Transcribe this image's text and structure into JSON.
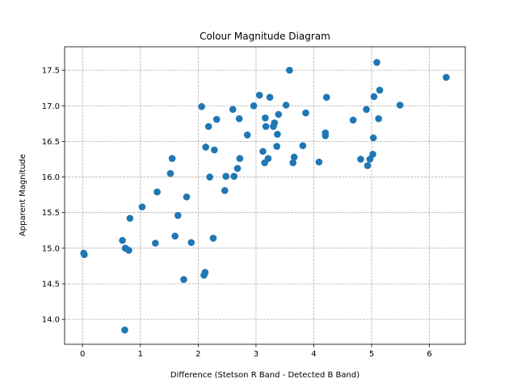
{
  "chart_data": {
    "type": "scatter",
    "title": "Colour Magnitude Diagram",
    "xlabel": "Difference (Stetson R Band - Detected B Band)",
    "ylabel": "Apparent Magnitude",
    "xlim": [
      -0.31,
      6.62
    ],
    "ylim": [
      13.65,
      17.83
    ],
    "xticks": [
      0,
      1,
      2,
      3,
      4,
      5,
      6
    ],
    "yticks": [
      14.0,
      14.5,
      15.0,
      15.5,
      16.0,
      16.5,
      17.0,
      17.5
    ],
    "xtick_labels": [
      "0",
      "1",
      "2",
      "3",
      "4",
      "5",
      "6"
    ],
    "ytick_labels": [
      "14.0",
      "14.5",
      "15.0",
      "15.5",
      "16.0",
      "16.5",
      "17.0",
      "17.5"
    ],
    "grid": true,
    "grid_style": "dashed",
    "marker_color": "#1f77b4",
    "points": [
      {
        "x": 0.02,
        "y": 14.93
      },
      {
        "x": 0.03,
        "y": 14.91
      },
      {
        "x": 0.69,
        "y": 15.11
      },
      {
        "x": 0.74,
        "y": 15.0
      },
      {
        "x": 0.8,
        "y": 14.97
      },
      {
        "x": 0.82,
        "y": 15.42
      },
      {
        "x": 0.73,
        "y": 13.85
      },
      {
        "x": 1.03,
        "y": 15.58
      },
      {
        "x": 1.26,
        "y": 15.07
      },
      {
        "x": 1.29,
        "y": 15.79
      },
      {
        "x": 1.52,
        "y": 16.05
      },
      {
        "x": 1.55,
        "y": 16.26
      },
      {
        "x": 1.6,
        "y": 15.17
      },
      {
        "x": 1.65,
        "y": 15.46
      },
      {
        "x": 1.75,
        "y": 14.56
      },
      {
        "x": 1.8,
        "y": 15.72
      },
      {
        "x": 1.88,
        "y": 15.08
      },
      {
        "x": 2.06,
        "y": 16.99
      },
      {
        "x": 2.1,
        "y": 14.62
      },
      {
        "x": 2.12,
        "y": 14.66
      },
      {
        "x": 2.13,
        "y": 16.42
      },
      {
        "x": 2.18,
        "y": 16.71
      },
      {
        "x": 2.2,
        "y": 16.0
      },
      {
        "x": 2.26,
        "y": 15.14
      },
      {
        "x": 2.28,
        "y": 16.38
      },
      {
        "x": 2.32,
        "y": 16.81
      },
      {
        "x": 2.46,
        "y": 15.81
      },
      {
        "x": 2.48,
        "y": 16.01
      },
      {
        "x": 2.6,
        "y": 16.95
      },
      {
        "x": 2.62,
        "y": 16.01
      },
      {
        "x": 2.68,
        "y": 16.12
      },
      {
        "x": 2.71,
        "y": 16.82
      },
      {
        "x": 2.72,
        "y": 16.26
      },
      {
        "x": 2.85,
        "y": 16.59
      },
      {
        "x": 2.96,
        "y": 17.0
      },
      {
        "x": 3.06,
        "y": 17.15
      },
      {
        "x": 3.12,
        "y": 16.36
      },
      {
        "x": 3.15,
        "y": 16.2
      },
      {
        "x": 3.16,
        "y": 16.83
      },
      {
        "x": 3.17,
        "y": 16.71
      },
      {
        "x": 3.21,
        "y": 16.26
      },
      {
        "x": 3.24,
        "y": 17.12
      },
      {
        "x": 3.3,
        "y": 16.71
      },
      {
        "x": 3.32,
        "y": 16.76
      },
      {
        "x": 3.36,
        "y": 16.43
      },
      {
        "x": 3.37,
        "y": 16.6
      },
      {
        "x": 3.39,
        "y": 16.88
      },
      {
        "x": 3.52,
        "y": 17.01
      },
      {
        "x": 3.58,
        "y": 17.5
      },
      {
        "x": 3.64,
        "y": 16.2
      },
      {
        "x": 3.66,
        "y": 16.28
      },
      {
        "x": 3.81,
        "y": 16.44
      },
      {
        "x": 3.86,
        "y": 16.9
      },
      {
        "x": 4.09,
        "y": 16.21
      },
      {
        "x": 4.2,
        "y": 16.62
      },
      {
        "x": 4.2,
        "y": 16.58
      },
      {
        "x": 4.22,
        "y": 17.12
      },
      {
        "x": 4.68,
        "y": 16.8
      },
      {
        "x": 4.81,
        "y": 16.25
      },
      {
        "x": 4.91,
        "y": 16.95
      },
      {
        "x": 4.93,
        "y": 16.16
      },
      {
        "x": 4.97,
        "y": 16.25
      },
      {
        "x": 5.02,
        "y": 16.32
      },
      {
        "x": 5.03,
        "y": 16.55
      },
      {
        "x": 5.04,
        "y": 17.13
      },
      {
        "x": 5.09,
        "y": 17.61
      },
      {
        "x": 5.12,
        "y": 16.82
      },
      {
        "x": 5.14,
        "y": 17.22
      },
      {
        "x": 5.49,
        "y": 17.01
      },
      {
        "x": 6.29,
        "y": 17.4
      }
    ]
  }
}
